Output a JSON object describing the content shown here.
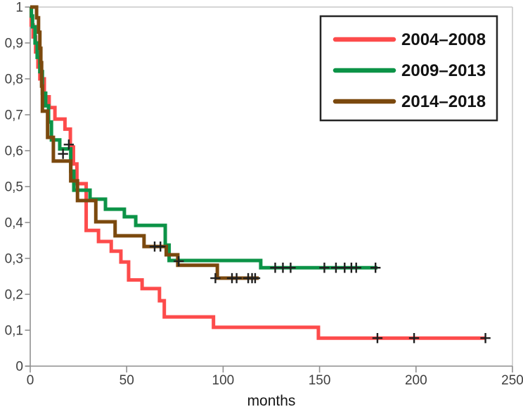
{
  "chart_data": {
    "type": "line",
    "variant": "kaplan_meier_step_survival",
    "title": "",
    "xlabel": "months",
    "ylabel": "",
    "xlim": [
      0,
      250
    ],
    "ylim": [
      0,
      1
    ],
    "x_ticks": [
      0,
      50,
      100,
      150,
      200,
      250
    ],
    "y_ticks": [
      1,
      0.9,
      0.8,
      0.7,
      0.6,
      0.5,
      0.4,
      0.3,
      0.2,
      0.1,
      0
    ],
    "grid": "off",
    "legend_position": "top-right",
    "censor_marker": "plus",
    "series": [
      {
        "name": "2004–2008",
        "color": "#fd4b4b",
        "steps": [
          [
            0,
            1.0
          ],
          [
            0.5,
            0.95
          ],
          [
            1.5,
            0.917
          ],
          [
            2.8,
            0.875
          ],
          [
            4,
            0.833
          ],
          [
            5,
            0.8
          ],
          [
            7.3,
            0.75
          ],
          [
            9.8,
            0.72
          ],
          [
            12.8,
            0.688
          ],
          [
            18,
            0.66
          ],
          [
            20.8,
            0.61
          ],
          [
            22.4,
            0.563
          ],
          [
            24.2,
            0.508
          ],
          [
            29,
            0.378
          ],
          [
            35.4,
            0.347
          ],
          [
            42,
            0.32
          ],
          [
            47,
            0.29
          ],
          [
            51,
            0.24
          ],
          [
            58,
            0.216
          ],
          [
            67,
            0.182
          ],
          [
            69.5,
            0.137
          ],
          [
            95,
            0.108
          ],
          [
            149.4,
            0.078
          ]
        ],
        "end_month": 236,
        "censor_marks": [
          [
            180,
            0.078
          ],
          [
            199,
            0.078
          ],
          [
            236,
            0.078
          ]
        ]
      },
      {
        "name": "2009–2013",
        "color": "#0c9347",
        "steps": [
          [
            0,
            1.0
          ],
          [
            0.6,
            0.975
          ],
          [
            1.2,
            0.945
          ],
          [
            2.5,
            0.9
          ],
          [
            3.6,
            0.86
          ],
          [
            5,
            0.82
          ],
          [
            6.3,
            0.76
          ],
          [
            8,
            0.725
          ],
          [
            9.5,
            0.68
          ],
          [
            11,
            0.63
          ],
          [
            15.3,
            0.605
          ],
          [
            21,
            0.543
          ],
          [
            22.6,
            0.49
          ],
          [
            31,
            0.465
          ],
          [
            39,
            0.437
          ],
          [
            48.8,
            0.416
          ],
          [
            54.7,
            0.392
          ],
          [
            70,
            0.337
          ],
          [
            72,
            0.294
          ],
          [
            119.5,
            0.274
          ]
        ],
        "end_month": 180,
        "censor_marks": [
          [
            20,
            0.617
          ],
          [
            77,
            0.292
          ],
          [
            127,
            0.274
          ],
          [
            131,
            0.274
          ],
          [
            135,
            0.274
          ],
          [
            152.5,
            0.274
          ],
          [
            158.5,
            0.274
          ],
          [
            163,
            0.274
          ],
          [
            166.5,
            0.274
          ],
          [
            169,
            0.274
          ],
          [
            179,
            0.274
          ]
        ]
      },
      {
        "name": "2014–2018",
        "color": "#7b490e",
        "steps": [
          [
            0,
            1.0
          ],
          [
            3.3,
            0.97
          ],
          [
            4.3,
            0.93
          ],
          [
            5,
            0.885
          ],
          [
            5.5,
            0.845
          ],
          [
            5.9,
            0.78
          ],
          [
            6.3,
            0.71
          ],
          [
            9,
            0.637
          ],
          [
            12,
            0.571
          ],
          [
            21,
            0.516
          ],
          [
            24.5,
            0.461
          ],
          [
            34,
            0.402
          ],
          [
            44,
            0.363
          ],
          [
            59,
            0.333
          ],
          [
            70.5,
            0.31
          ],
          [
            76.5,
            0.281
          ],
          [
            97,
            0.245
          ]
        ],
        "end_month": 118.5,
        "censor_marks": [
          [
            17,
            0.591
          ],
          [
            64.5,
            0.333
          ],
          [
            67.5,
            0.333
          ],
          [
            96,
            0.245
          ],
          [
            104.6,
            0.245
          ],
          [
            107,
            0.245
          ],
          [
            113,
            0.245
          ],
          [
            115,
            0.245
          ],
          [
            116.6,
            0.245
          ]
        ]
      }
    ]
  },
  "axes": {
    "x_tick_labels": [
      "0",
      "50",
      "100",
      "150",
      "200",
      "250"
    ],
    "y_tick_labels": [
      "1",
      "0,9",
      "0,8",
      "0,7",
      "0,6",
      "0,5",
      "0,4",
      "0,3",
      "0,2",
      "0,1",
      "0"
    ],
    "y_tick_values": [
      1,
      0.9,
      0.8,
      0.7,
      0.6,
      0.5,
      0.4,
      0.3,
      0.2,
      0.1,
      0
    ],
    "x_axis_label": "months"
  },
  "legend": {
    "items": [
      {
        "label": "2004–2008",
        "color": "#fd4b4b"
      },
      {
        "label": "2009–2013",
        "color": "#0c9347"
      },
      {
        "label": "2014–2018",
        "color": "#7b490e"
      }
    ]
  },
  "colors": {
    "background": "#ffffff",
    "axis": "#8f8f8f",
    "plot_border": "#c9c9c9",
    "tick_label": "#3f3f3f",
    "censor": "#1f1f1f",
    "legend_border": "#262626",
    "legend_text": "#121212"
  }
}
